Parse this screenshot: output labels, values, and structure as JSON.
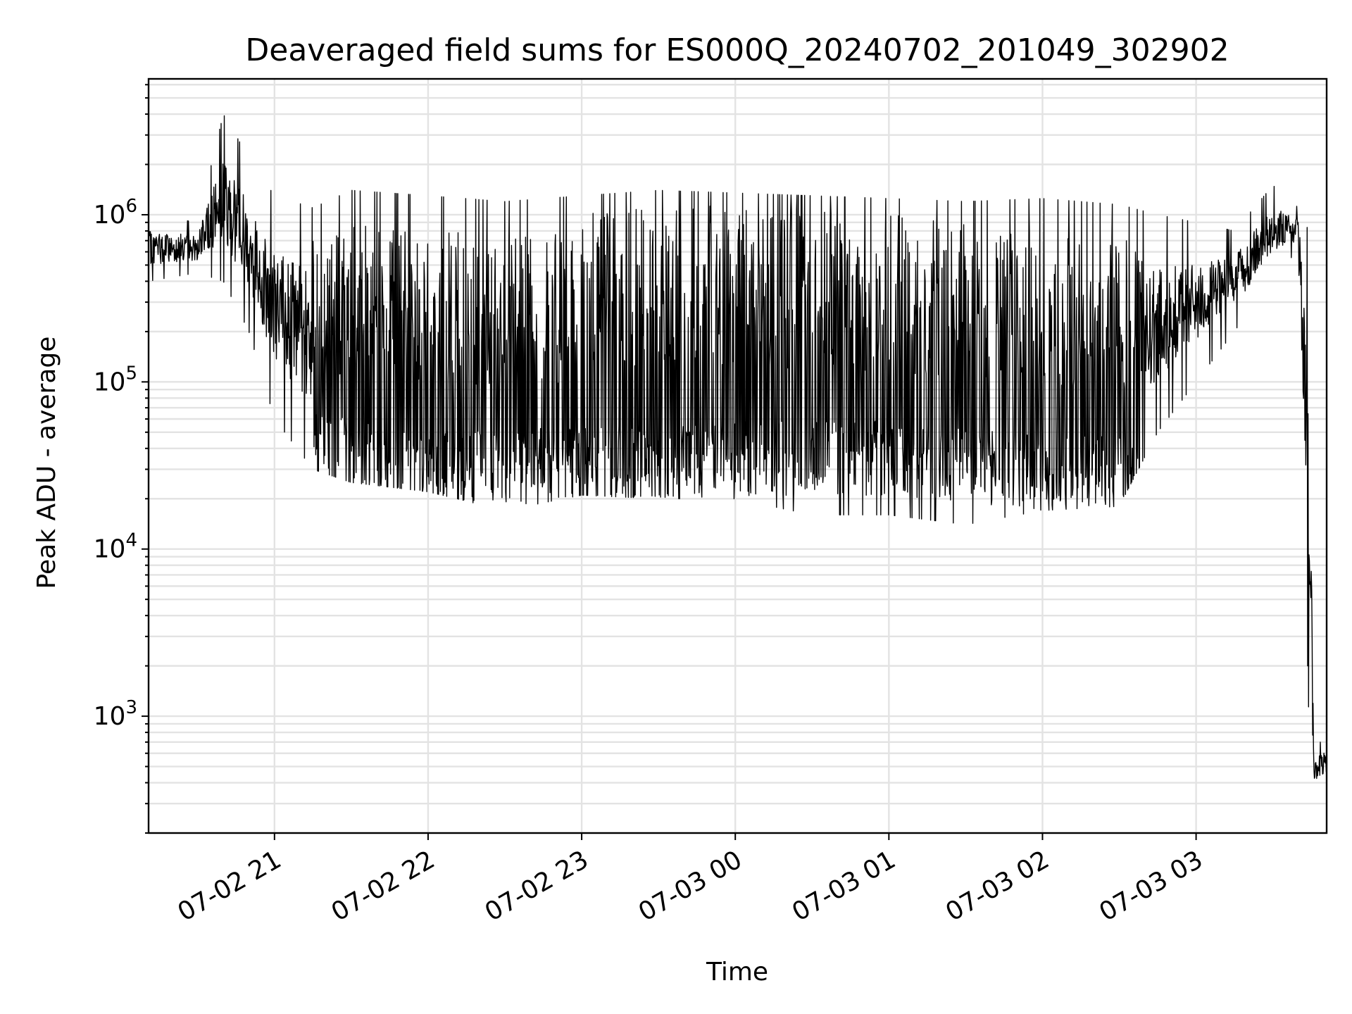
{
  "chart_data": {
    "type": "line",
    "title": "Deaveraged field sums for ES000Q_20240702_201049_302902",
    "xlabel": "Time",
    "ylabel": "Peak ADU - average",
    "yscale": "log",
    "grid": true,
    "ylim": [
      200,
      6500000
    ],
    "xlim": [
      "2024-07-02 20:10:49",
      "2024-07-03 03:51:00"
    ],
    "x_ticks": [
      {
        "time": "2024-07-02 21:00",
        "label": "07-02 21"
      },
      {
        "time": "2024-07-02 22:00",
        "label": "07-02 22"
      },
      {
        "time": "2024-07-02 23:00",
        "label": "07-02 23"
      },
      {
        "time": "2024-07-03 00:00",
        "label": "07-03 00"
      },
      {
        "time": "2024-07-03 01:00",
        "label": "07-03 01"
      },
      {
        "time": "2024-07-03 02:00",
        "label": "07-03 02"
      },
      {
        "time": "2024-07-03 03:00",
        "label": "07-03 03"
      }
    ],
    "y_ticks": [
      {
        "value": 1000,
        "base": "10",
        "exp": "3"
      },
      {
        "value": 10000,
        "base": "10",
        "exp": "4"
      },
      {
        "value": 100000,
        "base": "10",
        "exp": "5"
      },
      {
        "value": 1000000,
        "base": "10",
        "exp": "6"
      }
    ],
    "series": [
      {
        "color": "#000000",
        "envelope": [
          {
            "time": "2024-07-02 20:10:49",
            "low": 400000,
            "high": 1000000
          },
          {
            "time": "2024-07-02 20:30",
            "low": 450000,
            "high": 900000
          },
          {
            "time": "2024-07-02 20:40",
            "low": 400000,
            "high": 4000000
          },
          {
            "time": "2024-07-02 20:50",
            "low": 200000,
            "high": 2200000
          },
          {
            "time": "2024-07-02 21:00",
            "low": 60000,
            "high": 1300000
          },
          {
            "time": "2024-07-02 21:15",
            "low": 30000,
            "high": 1100000
          },
          {
            "time": "2024-07-02 21:30",
            "low": 25000,
            "high": 1400000
          },
          {
            "time": "2024-07-02 22:00",
            "low": 22000,
            "high": 1300000
          },
          {
            "time": "2024-07-02 22:30",
            "low": 17000,
            "high": 1200000
          },
          {
            "time": "2024-07-02 23:00",
            "low": 21000,
            "high": 1300000
          },
          {
            "time": "2024-07-02 23:30",
            "low": 20000,
            "high": 1400000
          },
          {
            "time": "2024-07-03 00:00",
            "low": 20000,
            "high": 1350000
          },
          {
            "time": "2024-07-03 00:30",
            "low": 16000,
            "high": 1300000
          },
          {
            "time": "2024-07-03 01:00",
            "low": 16000,
            "high": 1250000
          },
          {
            "time": "2024-07-03 01:30",
            "low": 14000,
            "high": 1200000
          },
          {
            "time": "2024-07-03 02:00",
            "low": 17000,
            "high": 1250000
          },
          {
            "time": "2024-07-03 02:30",
            "low": 18000,
            "high": 1150000
          },
          {
            "time": "2024-07-03 02:45",
            "low": 50000,
            "high": 1000000
          },
          {
            "time": "2024-07-03 03:00",
            "low": 100000,
            "high": 900000
          },
          {
            "time": "2024-07-03 03:15",
            "low": 200000,
            "high": 800000
          },
          {
            "time": "2024-07-03 03:30",
            "low": 450000,
            "high": 1500000
          },
          {
            "time": "2024-07-03 03:40",
            "low": 600000,
            "high": 1100000
          },
          {
            "time": "2024-07-03 03:44",
            "low": 1000,
            "high": 800000
          },
          {
            "time": "2024-07-03 03:46",
            "low": 330,
            "high": 700
          },
          {
            "time": "2024-07-03 03:51",
            "low": 400,
            "high": 700
          }
        ],
        "quiet_level": [
          {
            "time": "2024-07-02 21:15",
            "value": 40000
          },
          {
            "time": "2024-07-02 22:00",
            "value": 30000
          },
          {
            "time": "2024-07-02 23:00",
            "value": 32000
          },
          {
            "time": "2024-07-03 00:00",
            "value": 35000
          },
          {
            "time": "2024-07-03 01:00",
            "value": 35000
          },
          {
            "time": "2024-07-03 02:00",
            "value": 28000
          },
          {
            "time": "2024-07-03 02:40",
            "value": 30000
          }
        ],
        "peak_level": [
          {
            "time": "2024-07-02 23:00",
            "value": 1100000
          },
          {
            "time": "2024-07-03 00:00",
            "value": 1150000
          },
          {
            "time": "2024-07-03 01:00",
            "value": 1000000
          },
          {
            "time": "2024-07-03 02:00",
            "value": 800000
          }
        ]
      }
    ]
  }
}
